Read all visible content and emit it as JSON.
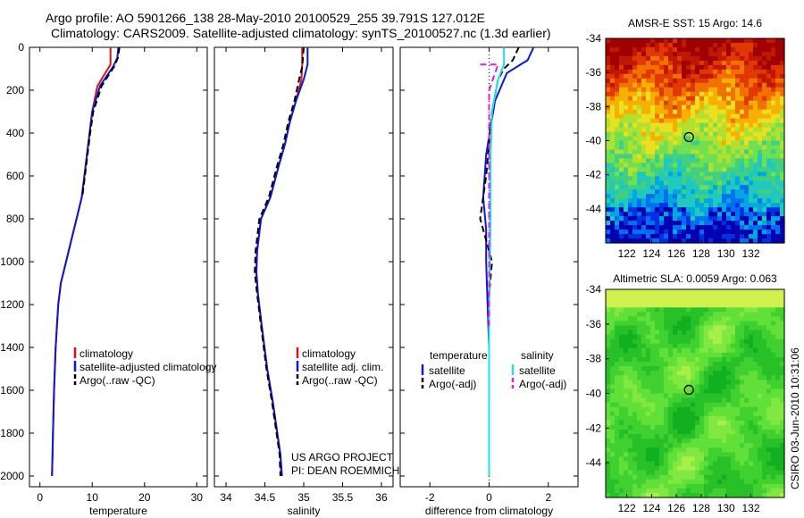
{
  "header": {
    "line1": "Argo profile: AO 5901266_138 28-May-2010 20100529_255 39.791S 127.012E",
    "line2": "Climatology: CARS2009. Satellite-adjusted climatology: synTS_20100527.nc (1.3d earlier)"
  },
  "credit": "CSIRO 03-Jun-2010 10:31:06",
  "colors": {
    "red": "#e01010",
    "blue": "#0a18d8",
    "black": "#000000",
    "cyan": "#20e0f0",
    "magenta": "#e020e0"
  },
  "chart_data": [
    {
      "type": "line",
      "xlabel": "temperature",
      "xlim": [
        -2,
        32
      ],
      "xticks": [
        0,
        10,
        20,
        30
      ],
      "ylim": [
        2050,
        0
      ],
      "yticks": [
        0,
        200,
        400,
        600,
        800,
        1000,
        1200,
        1400,
        1600,
        1800,
        2000
      ],
      "legend": [
        "climatology",
        "satellite-adjusted climatology",
        "Argo(..raw -QC)"
      ],
      "series": [
        {
          "name": "climatology",
          "color": "red",
          "dash": false,
          "x": [
            13.5,
            13.5,
            13.0,
            11.0,
            10.0,
            9.5,
            9.0,
            8.0,
            7.0,
            6.0,
            5.0,
            4.0,
            3.5,
            3.0,
            2.7,
            2.5,
            2.4,
            2.3
          ],
          "y": [
            0,
            80,
            100,
            180,
            300,
            400,
            500,
            700,
            800,
            900,
            1000,
            1100,
            1200,
            1400,
            1600,
            1800,
            1900,
            2000
          ]
        },
        {
          "name": "satellite-adjusted climatology",
          "color": "blue",
          "dash": false,
          "x": [
            15.0,
            14.8,
            14.0,
            11.5,
            10.0,
            9.5,
            9.0,
            8.0,
            7.0,
            6.0,
            5.0,
            4.0,
            3.5,
            3.0,
            2.7,
            2.5,
            2.4,
            2.3
          ],
          "y": [
            0,
            50,
            90,
            180,
            300,
            400,
            500,
            700,
            800,
            900,
            1000,
            1100,
            1200,
            1400,
            1600,
            1800,
            1900,
            2000
          ]
        },
        {
          "name": "Argo(..raw -QC)",
          "color": "black",
          "dash": true,
          "x": [
            15.2,
            14.9,
            14.2,
            11.8,
            10.2,
            9.6,
            9.1,
            8.1
          ],
          "y": [
            0,
            50,
            90,
            180,
            300,
            400,
            500,
            700
          ]
        }
      ]
    },
    {
      "type": "line",
      "xlabel": "salinity",
      "xlim": [
        33.85,
        36.15
      ],
      "xticks": [
        34,
        34.5,
        35,
        35.5,
        36
      ],
      "xticklabels": [
        "34",
        "34.5",
        "35",
        "35.5",
        "36"
      ],
      "ylim": [
        2050,
        0
      ],
      "legend": [
        "climatology",
        "satellite adj. clim.",
        "Argo(..raw -QC)"
      ],
      "annotation": [
        "US ARGO PROJECT",
        "PI: DEAN ROEMMICH"
      ],
      "series": [
        {
          "name": "climatology",
          "color": "red",
          "dash": false,
          "x": [
            34.98,
            34.98,
            34.97,
            34.9,
            34.82,
            34.76,
            34.68,
            34.57,
            34.45,
            34.4,
            34.39,
            34.41,
            34.46,
            34.53,
            34.6,
            34.66,
            34.7,
            34.71
          ],
          "y": [
            0,
            80,
            150,
            250,
            350,
            450,
            550,
            700,
            800,
            950,
            1050,
            1150,
            1300,
            1500,
            1650,
            1800,
            1900,
            2000
          ]
        },
        {
          "name": "satellite adj. clim.",
          "color": "blue",
          "dash": false,
          "x": [
            35.05,
            35.05,
            35.0,
            34.9,
            34.82,
            34.76,
            34.68,
            34.57,
            34.45,
            34.4,
            34.39,
            34.41,
            34.46,
            34.53,
            34.6,
            34.66,
            34.7,
            34.72
          ],
          "y": [
            0,
            80,
            150,
            250,
            350,
            450,
            550,
            700,
            800,
            950,
            1050,
            1150,
            1300,
            1500,
            1650,
            1800,
            1900,
            2000
          ]
        },
        {
          "name": "Argo(..raw -QC)",
          "color": "black",
          "dash": true,
          "x": [
            35.0,
            34.98,
            34.94,
            34.88,
            34.8,
            34.74,
            34.66,
            34.55,
            34.43,
            34.38,
            34.37,
            34.4,
            34.45,
            34.52,
            34.59,
            34.65,
            34.69,
            34.7
          ],
          "y": [
            0,
            90,
            150,
            250,
            350,
            450,
            550,
            700,
            800,
            950,
            1050,
            1150,
            1300,
            1500,
            1650,
            1800,
            1900,
            2000
          ]
        }
      ]
    },
    {
      "type": "line",
      "xlabel": "difference from climatology",
      "xlim": [
        -3.0,
        3.0
      ],
      "xticks": [
        -2,
        0,
        2
      ],
      "ylim": [
        2050,
        0
      ],
      "legend_columns": [
        {
          "title": "temperature",
          "items": [
            {
              "label": "satellite",
              "color": "blue"
            },
            {
              "label": "Argo(-adj)",
              "color": "black"
            }
          ]
        },
        {
          "title": "salinity",
          "items": [
            {
              "label": "satellite",
              "color": "cyan"
            },
            {
              "label": "Argo(-adj)",
              "color": "magenta"
            }
          ]
        }
      ],
      "series": [
        {
          "name": "temperature satellite",
          "color": "blue",
          "dash": false,
          "x": [
            1.5,
            1.3,
            0.6,
            0.2,
            -0.1,
            -0.2,
            -0.1,
            -0.1,
            -0.05,
            0.0,
            0.0,
            0.0,
            0.0
          ],
          "y": [
            0,
            60,
            120,
            250,
            500,
            700,
            850,
            1000,
            1200,
            1400,
            1600,
            1800,
            2000
          ]
        },
        {
          "name": "temperature Argo(-adj)",
          "color": "black",
          "dash": true,
          "x": [
            1.0,
            0.8,
            0.5,
            0.3,
            0.1,
            -0.1,
            -0.3,
            -0.1,
            0.1,
            0.0,
            0.0
          ],
          "y": [
            0,
            60,
            100,
            150,
            300,
            600,
            800,
            900,
            1000,
            1150,
            1300
          ]
        },
        {
          "name": "salinity satellite",
          "color": "cyan",
          "dash": false,
          "x": [
            0.5,
            0.5,
            0.3,
            0.1,
            0.05,
            0.05,
            0.0,
            0.0,
            0.0
          ],
          "y": [
            0,
            80,
            150,
            300,
            500,
            800,
            1200,
            1600,
            2000
          ]
        },
        {
          "name": "salinity Argo(-adj)",
          "color": "magenta",
          "dash": true,
          "x": [
            -0.3,
            -0.1,
            0.3,
            0.0,
            0.0,
            0.0
          ],
          "y": [
            80,
            80,
            80,
            200,
            500,
            1300
          ]
        }
      ]
    },
    {
      "type": "heatmap",
      "title": "AMSR-E SST: 15 Argo: 14.6",
      "xlim": [
        120.3,
        134.7
      ],
      "ylim": [
        -46,
        -34
      ],
      "xticks": [
        122,
        124,
        126,
        128,
        130,
        132
      ],
      "yticks": [
        -34,
        -36,
        -38,
        -40,
        -42,
        -44
      ],
      "marker": {
        "lon": 127.012,
        "lat": -39.791
      }
    },
    {
      "type": "heatmap",
      "title": "Altimetric SLA: 0.0059 Argo: 0.063",
      "xlim": [
        120.3,
        134.7
      ],
      "ylim": [
        -46,
        -34
      ],
      "xticks": [
        122,
        124,
        126,
        128,
        130,
        132
      ],
      "yticks": [
        -34,
        -36,
        -38,
        -40,
        -42,
        -44
      ],
      "marker": {
        "lon": 127.012,
        "lat": -39.791
      }
    }
  ]
}
